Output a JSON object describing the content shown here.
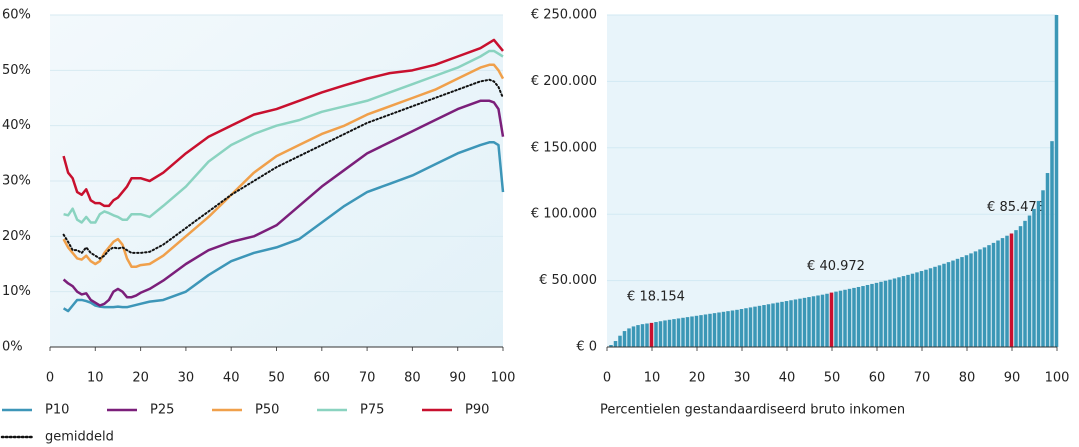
{
  "chart_data": [
    {
      "type": "line",
      "x": [
        3,
        4,
        5,
        6,
        7,
        8,
        9,
        10,
        11,
        12,
        13,
        14,
        15,
        16,
        17,
        18,
        19,
        20,
        22,
        25,
        30,
        35,
        40,
        45,
        50,
        55,
        60,
        65,
        70,
        75,
        80,
        85,
        90,
        95,
        97,
        98,
        99,
        100
      ],
      "series": [
        {
          "name": "P10",
          "color": "#3d96b8",
          "values": [
            7,
            6.5,
            7.5,
            8.5,
            8.5,
            8.3,
            8,
            7.5,
            7.3,
            7.2,
            7.2,
            7.2,
            7.3,
            7.2,
            7.2,
            7.4,
            7.6,
            7.8,
            8.2,
            8.5,
            10,
            13,
            15.5,
            17,
            18,
            19.5,
            22.5,
            25.5,
            28,
            29.5,
            31,
            33,
            35,
            36.5,
            37,
            37,
            36.5,
            28
          ]
        },
        {
          "name": "P25",
          "color": "#7b1f7a",
          "values": [
            12.2,
            11.5,
            11,
            10,
            9.5,
            9.7,
            8.5,
            8,
            7.5,
            7.8,
            8.5,
            10,
            10.5,
            10,
            9,
            9,
            9.3,
            9.8,
            10.5,
            12,
            15,
            17.5,
            19,
            20,
            22,
            25.5,
            29,
            32,
            35,
            37,
            39,
            41,
            43,
            44.5,
            44.5,
            44.2,
            43,
            38
          ]
        },
        {
          "name": "P50",
          "color": "#f0a04b",
          "values": [
            19.5,
            18,
            17,
            16,
            15.8,
            16.5,
            15.5,
            15,
            15.5,
            17,
            18,
            19,
            19.5,
            18.5,
            16,
            14.5,
            14.5,
            14.8,
            15,
            16.5,
            20,
            23.5,
            27.5,
            31.5,
            34.5,
            36.5,
            38.5,
            40,
            42,
            43.5,
            45,
            46.5,
            48.5,
            50.5,
            51,
            51,
            50,
            48.5
          ]
        },
        {
          "name": "P75",
          "color": "#8ad3c0",
          "values": [
            24,
            23.8,
            25,
            23,
            22.5,
            23.5,
            22.5,
            22.5,
            24,
            24.5,
            24.2,
            23.8,
            23.5,
            23,
            23,
            24,
            24,
            24,
            23.5,
            25.5,
            29,
            33.5,
            36.5,
            38.5,
            40,
            41,
            42.5,
            43.5,
            44.5,
            46,
            47.5,
            49,
            50.5,
            52.5,
            53.5,
            53.5,
            53,
            52.5
          ]
        },
        {
          "name": "P90",
          "color": "#c8102e",
          "values": [
            34.5,
            31.5,
            30.5,
            28,
            27.5,
            28.5,
            26.5,
            26,
            26,
            25.5,
            25.5,
            26.5,
            27,
            28,
            29,
            30.5,
            30.5,
            30.5,
            30,
            31.5,
            35,
            38,
            40,
            42,
            43,
            44.5,
            46,
            47.3,
            48.5,
            49.5,
            50,
            51,
            52.5,
            54,
            55,
            55.5,
            54.5,
            53.5
          ]
        },
        {
          "name": "gemiddeld",
          "color": "#111111",
          "dash": "dotted",
          "values": [
            20.3,
            19,
            17.5,
            17.5,
            17,
            18,
            17,
            16.5,
            16,
            16.5,
            17.5,
            18,
            17.8,
            18,
            17.5,
            17,
            17,
            17,
            17.2,
            18.5,
            21.5,
            24.5,
            27.5,
            30,
            32.5,
            34.5,
            36.5,
            38.5,
            40.5,
            42,
            43.5,
            45,
            46.5,
            48,
            48.3,
            48,
            47,
            45
          ]
        }
      ],
      "xlim": [
        0,
        100
      ],
      "xticks": [
        0,
        10,
        20,
        30,
        40,
        50,
        60,
        70,
        80,
        90,
        100
      ],
      "ylim": [
        0,
        60
      ],
      "yticks": [
        {
          "value": 0,
          "label": "0%"
        },
        {
          "value": 10,
          "label": "10%"
        },
        {
          "value": 20,
          "label": "20%"
        },
        {
          "value": 30,
          "label": "30%"
        },
        {
          "value": 40,
          "label": "40%"
        },
        {
          "value": 50,
          "label": "50%"
        },
        {
          "value": 60,
          "label": "60%"
        }
      ],
      "grid": true,
      "legend": "bottom"
    },
    {
      "type": "bar",
      "x_label": "Percentielen gestandaardiseerd bruto inkomen",
      "x": [
        1,
        2,
        3,
        4,
        5,
        6,
        7,
        8,
        9,
        10,
        11,
        12,
        13,
        14,
        15,
        16,
        17,
        18,
        19,
        20,
        21,
        22,
        23,
        24,
        25,
        26,
        27,
        28,
        29,
        30,
        31,
        32,
        33,
        34,
        35,
        36,
        37,
        38,
        39,
        40,
        41,
        42,
        43,
        44,
        45,
        46,
        47,
        48,
        49,
        50,
        51,
        52,
        53,
        54,
        55,
        56,
        57,
        58,
        59,
        60,
        61,
        62,
        63,
        64,
        65,
        66,
        67,
        68,
        69,
        70,
        71,
        72,
        73,
        74,
        75,
        76,
        77,
        78,
        79,
        80,
        81,
        82,
        83,
        84,
        85,
        86,
        87,
        88,
        89,
        90,
        91,
        92,
        93,
        94,
        95,
        96,
        97,
        98,
        99,
        100
      ],
      "values": [
        1500,
        4500,
        8500,
        12000,
        14000,
        15500,
        16500,
        17200,
        17700,
        18154,
        18800,
        19400,
        20000,
        20500,
        21000,
        21500,
        22000,
        22500,
        23000,
        23500,
        24000,
        24500,
        25000,
        25500,
        26000,
        26500,
        27000,
        27500,
        28000,
        28600,
        29200,
        29800,
        30400,
        31000,
        31600,
        32200,
        32800,
        33400,
        34000,
        34600,
        35200,
        35800,
        36400,
        37000,
        37600,
        38200,
        38800,
        39400,
        40100,
        40972,
        41700,
        42400,
        43100,
        43800,
        44500,
        45200,
        45900,
        46700,
        47500,
        48300,
        49100,
        49900,
        50700,
        51600,
        52500,
        53400,
        54300,
        55200,
        56200,
        57200,
        58200,
        59300,
        60400,
        61500,
        62700,
        63900,
        65100,
        66400,
        67700,
        69100,
        70500,
        72000,
        73500,
        75000,
        76700,
        78400,
        80200,
        82000,
        83800,
        85473,
        88000,
        91000,
        95000,
        99000,
        104000,
        110000,
        118000,
        131000,
        155000,
        250000
      ],
      "value_labels": [
        null,
        null,
        null,
        null,
        null,
        null,
        null,
        null,
        null,
        "€ 18.154",
        null,
        null,
        null,
        null,
        null,
        null,
        null,
        null,
        null,
        null,
        null,
        null,
        null,
        null,
        null,
        null,
        null,
        null,
        null,
        null,
        null,
        null,
        null,
        null,
        null,
        null,
        null,
        null,
        null,
        null,
        null,
        null,
        null,
        null,
        null,
        null,
        null,
        null,
        null,
        "€ 40.972",
        null,
        null,
        null,
        null,
        null,
        null,
        null,
        null,
        null,
        null,
        null,
        null,
        null,
        null,
        null,
        null,
        null,
        null,
        null,
        null,
        null,
        null,
        null,
        null,
        null,
        null,
        null,
        null,
        null,
        null,
        null,
        null,
        null,
        null,
        null,
        null,
        null,
        null,
        null,
        "€ 85.473",
        null,
        null,
        null,
        null,
        null,
        null,
        null,
        null,
        null,
        null
      ],
      "color": "#3b97b6",
      "highlight_color": "#c8102e",
      "xlim": [
        0,
        100
      ],
      "xticks": [
        0,
        10,
        20,
        30,
        40,
        50,
        60,
        70,
        80,
        90,
        100
      ],
      "ylim": [
        0,
        250000
      ],
      "yticks": [
        {
          "value": 0,
          "label": "€ 0"
        },
        {
          "value": 50000,
          "label": "€ 50.000"
        },
        {
          "value": 100000,
          "label": "€ 100.000"
        },
        {
          "value": 150000,
          "label": "€ 150.000"
        },
        {
          "value": 200000,
          "label": "€ 200.000"
        },
        {
          "value": 250000,
          "label": "€ 250.000"
        }
      ],
      "grid": true
    }
  ]
}
